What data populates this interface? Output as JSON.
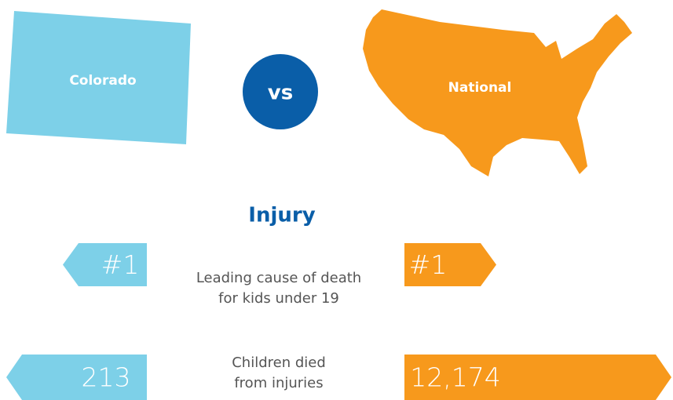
{
  "left_label": "Colorado",
  "vs": "vs",
  "right_label": "National",
  "heading": "Injury",
  "rows": [
    {
      "left": "#1",
      "description": [
        "Leading cause of death",
        "for kids under 19"
      ],
      "right": "#1"
    },
    {
      "left": "213",
      "description": [
        "Children died",
        "from injuries"
      ],
      "right": "12,174"
    }
  ]
}
